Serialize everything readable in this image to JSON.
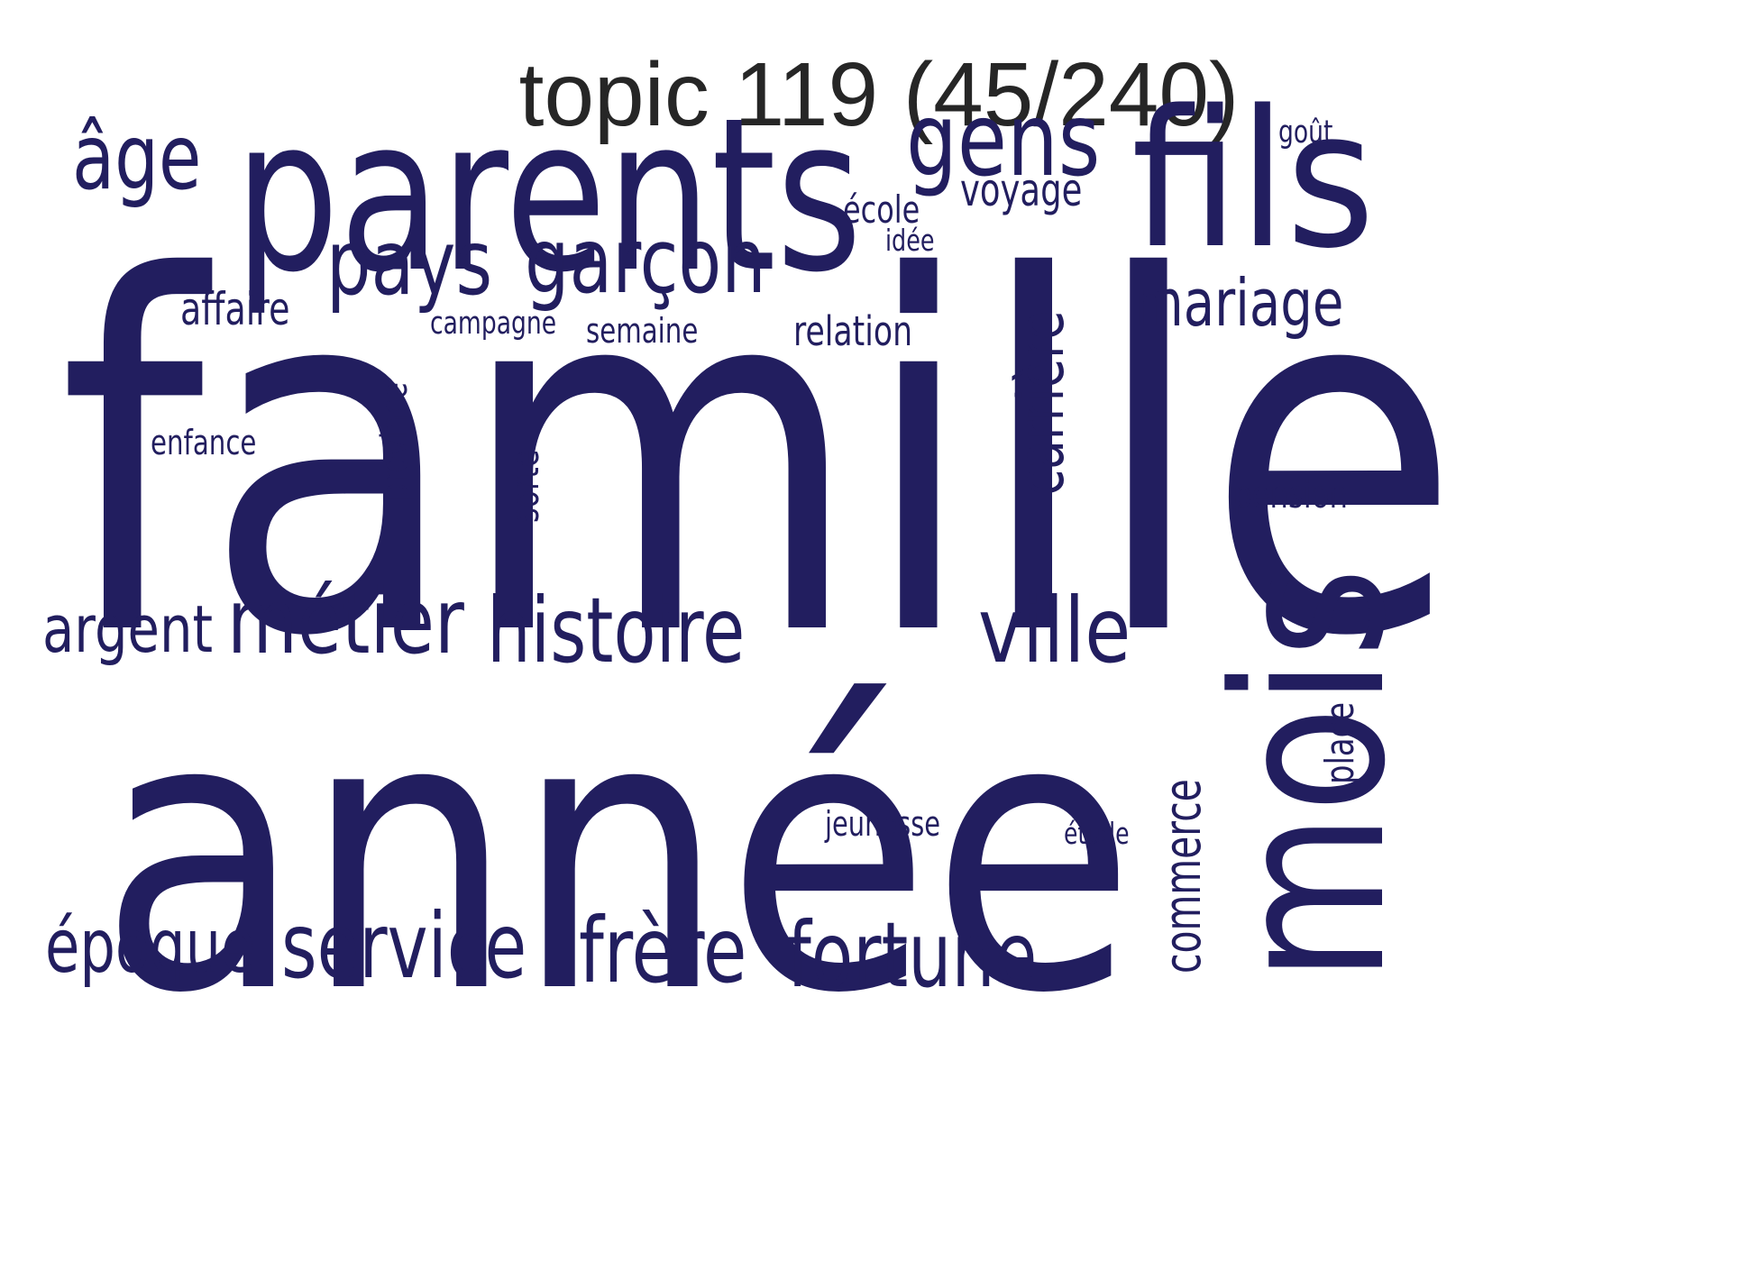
{
  "title": "topic 119 (45/240)",
  "word_color": "#221e5f",
  "words": [
    {
      "text": "famille",
      "orientation": "horizontal"
    },
    {
      "text": "année",
      "orientation": "horizontal"
    },
    {
      "text": "parents",
      "orientation": "horizontal"
    },
    {
      "text": "fils",
      "orientation": "horizontal"
    },
    {
      "text": "mois",
      "orientation": "vertical"
    },
    {
      "text": "gens",
      "orientation": "horizontal"
    },
    {
      "text": "garçon",
      "orientation": "horizontal"
    },
    {
      "text": "pays",
      "orientation": "horizontal"
    },
    {
      "text": "âge",
      "orientation": "horizontal"
    },
    {
      "text": "histoire",
      "orientation": "horizontal"
    },
    {
      "text": "métier",
      "orientation": "horizontal"
    },
    {
      "text": "ville",
      "orientation": "horizontal"
    },
    {
      "text": "frère",
      "orientation": "horizontal"
    },
    {
      "text": "fortune",
      "orientation": "horizontal"
    },
    {
      "text": "service",
      "orientation": "horizontal"
    },
    {
      "text": "époque",
      "orientation": "horizontal"
    },
    {
      "text": "argent",
      "orientation": "horizontal"
    },
    {
      "text": "mariage",
      "orientation": "horizontal"
    },
    {
      "text": "carrière",
      "orientation": "vertical"
    },
    {
      "text": "commerce",
      "orientation": "vertical"
    },
    {
      "text": "voyage",
      "orientation": "horizontal"
    },
    {
      "text": "affaire",
      "orientation": "horizontal"
    },
    {
      "text": "relation",
      "orientation": "horizontal"
    },
    {
      "text": "pension",
      "orientation": "horizontal"
    },
    {
      "text": "place",
      "orientation": "vertical"
    },
    {
      "text": "province",
      "orientation": "vertical"
    },
    {
      "text": "sorte",
      "orientation": "vertical"
    },
    {
      "text": "école",
      "orientation": "horizontal"
    },
    {
      "text": "semaine",
      "orientation": "horizontal"
    },
    {
      "text": "enfance",
      "orientation": "horizontal"
    },
    {
      "text": "jeunesse",
      "orientation": "horizontal"
    },
    {
      "text": "campagne",
      "orientation": "horizontal"
    },
    {
      "text": "goût",
      "orientation": "horizontal"
    },
    {
      "text": "idée",
      "orientation": "horizontal"
    },
    {
      "text": "étude",
      "orientation": "horizontal"
    }
  ]
}
